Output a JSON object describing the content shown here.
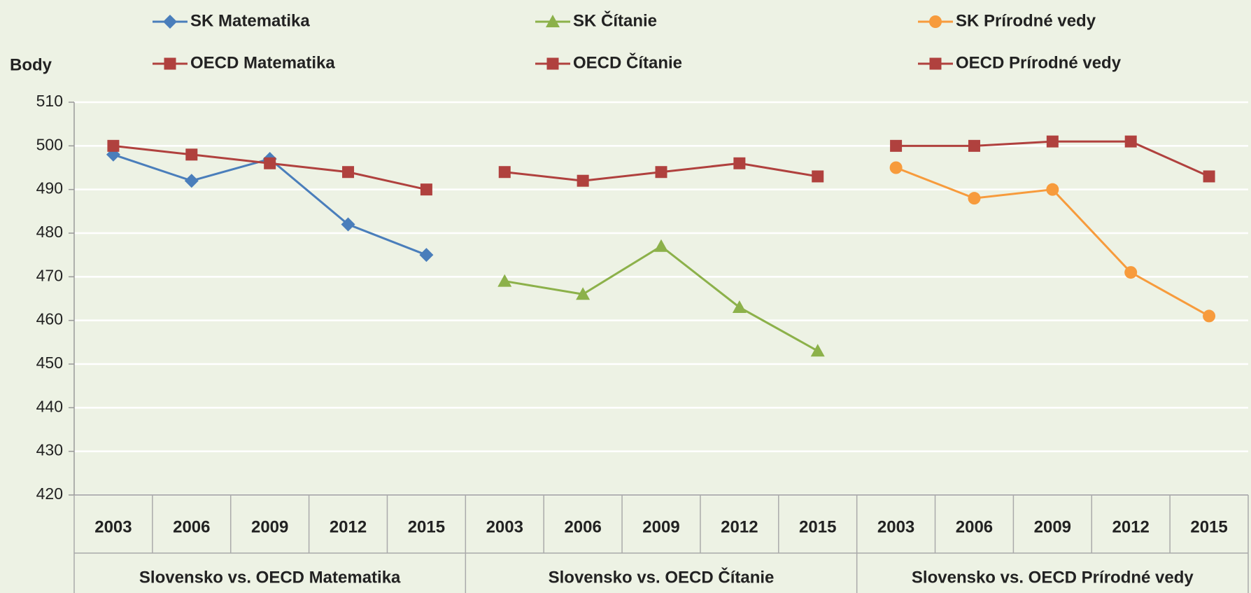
{
  "chart_data": {
    "type": "line",
    "y_label": "Body",
    "categories": [
      "2003",
      "2006",
      "2009",
      "2012",
      "2015",
      "2003",
      "2006",
      "2009",
      "2012",
      "2015",
      "2003",
      "2006",
      "2009",
      "2012",
      "2015"
    ],
    "category_groups": [
      "Slovensko vs. OECD Matematika",
      "Slovensko vs. OECD Čítanie",
      "Slovensko vs. OECD Prírodné vedy"
    ],
    "ylim": [
      420,
      510
    ],
    "yticks": [
      420,
      430,
      440,
      450,
      460,
      470,
      480,
      490,
      500,
      510
    ],
    "grid": true,
    "series": [
      {
        "name": "SK Matematika",
        "color": "#4a7ebb",
        "marker": "diamond",
        "values": [
          498,
          492,
          497,
          482,
          475,
          null,
          null,
          null,
          null,
          null,
          null,
          null,
          null,
          null,
          null
        ]
      },
      {
        "name": "OECD Matematika",
        "color": "#b0413e",
        "marker": "square",
        "values": [
          500,
          498,
          496,
          494,
          490,
          null,
          null,
          null,
          null,
          null,
          null,
          null,
          null,
          null,
          null
        ]
      },
      {
        "name": "SK Čítanie",
        "color": "#8cb14a",
        "marker": "triangle",
        "values": [
          null,
          null,
          null,
          null,
          null,
          469,
          466,
          477,
          463,
          453,
          null,
          null,
          null,
          null,
          null
        ]
      },
      {
        "name": "OECD Čítanie",
        "color": "#b0413e",
        "marker": "square",
        "values": [
          null,
          null,
          null,
          null,
          null,
          494,
          492,
          494,
          496,
          493,
          null,
          null,
          null,
          null,
          null
        ]
      },
      {
        "name": "SK Prírodné vedy",
        "color": "#f79b3c",
        "marker": "circle",
        "values": [
          null,
          null,
          null,
          null,
          null,
          null,
          null,
          null,
          null,
          null,
          495,
          488,
          490,
          471,
          461
        ]
      },
      {
        "name": "OECD Prírodné vedy",
        "color": "#b0413e",
        "marker": "square",
        "values": [
          null,
          null,
          null,
          null,
          null,
          null,
          null,
          null,
          null,
          null,
          500,
          500,
          501,
          501,
          493
        ]
      }
    ]
  }
}
